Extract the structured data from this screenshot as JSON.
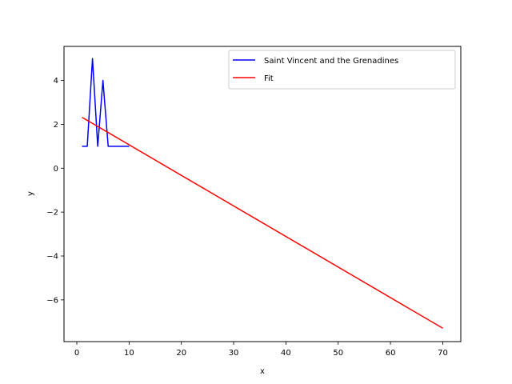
{
  "chart_data": {
    "type": "line",
    "xlabel": "x",
    "ylabel": "y",
    "xlim": [
      -2.45,
      73.45
    ],
    "ylim": [
      -7.9,
      5.55
    ],
    "grid": false,
    "legend_position": "top-right",
    "x_ticks": [
      0,
      10,
      20,
      30,
      40,
      50,
      60,
      70
    ],
    "y_ticks": [
      -6,
      -4,
      -2,
      0,
      2,
      4
    ],
    "series": [
      {
        "name": "Saint Vincent and the Grenadines",
        "color": "#0000ff",
        "x": [
          1,
          2,
          3,
          4,
          5,
          6,
          7,
          8,
          9,
          10
        ],
        "y": [
          1,
          1,
          5,
          1,
          4,
          1,
          1,
          1,
          1,
          1
        ]
      },
      {
        "name": "Fit",
        "color": "#ff0000",
        "x": [
          1,
          70
        ],
        "y": [
          2.32,
          -7.29
        ]
      }
    ]
  }
}
